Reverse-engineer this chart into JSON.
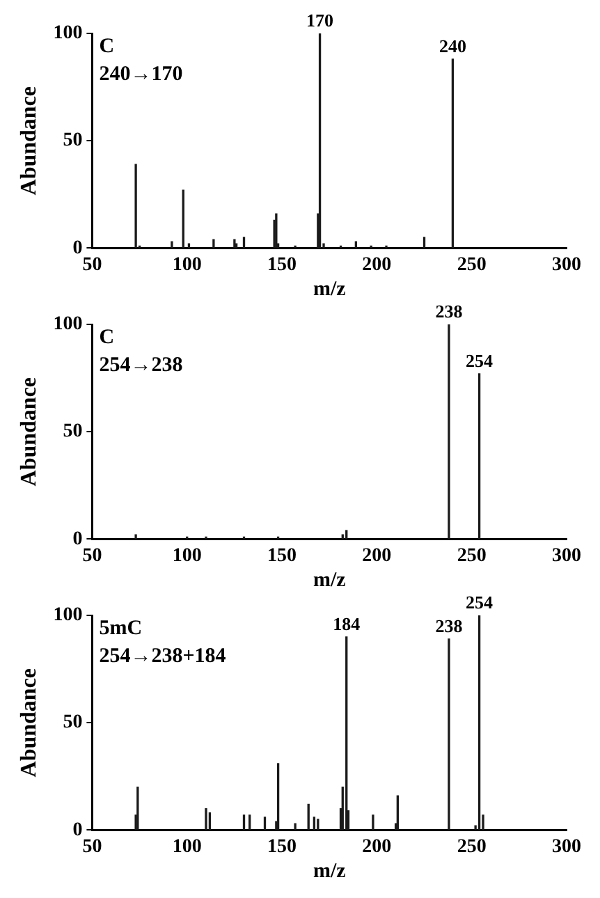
{
  "chart_data": [
    {
      "type": "bar",
      "xlabel": "m/z",
      "ylabel": "Abundance",
      "xlim": [
        50,
        300
      ],
      "xticks": [
        50,
        100,
        150,
        200,
        250,
        300
      ],
      "ylim": [
        0,
        100
      ],
      "yticks": [
        0,
        50,
        100
      ],
      "grid": false,
      "legend": false,
      "series": [
        {
          "color": "#1a1a1a",
          "x": [
            73,
            75,
            92,
            98,
            101,
            114,
            125,
            126,
            130,
            146,
            147,
            148,
            157,
            169,
            170,
            172,
            181,
            189,
            197,
            205,
            225,
            240
          ],
          "values": [
            39,
            1,
            3,
            27,
            2,
            4,
            4,
            2,
            5,
            13,
            16,
            2,
            1,
            16,
            100,
            2,
            1,
            3,
            1,
            1,
            5,
            88
          ]
        }
      ],
      "annotations": [
        "C",
        "240→170",
        {
          "text": "170",
          "x": 170,
          "y": 100
        },
        {
          "text": "240",
          "x": 240,
          "y": 88
        }
      ]
    },
    {
      "type": "bar",
      "xlabel": "m/z",
      "ylabel": "Abundance",
      "xlim": [
        50,
        300
      ],
      "xticks": [
        50,
        100,
        150,
        200,
        250,
        300
      ],
      "ylim": [
        0,
        100
      ],
      "yticks": [
        0,
        50,
        100
      ],
      "grid": false,
      "legend": false,
      "series": [
        {
          "color": "#1a1a1a",
          "x": [
            73,
            100,
            110,
            130,
            148,
            182,
            184,
            238,
            254
          ],
          "values": [
            2,
            1,
            1,
            1,
            1,
            2,
            4,
            100,
            77
          ]
        }
      ],
      "annotations": [
        "C",
        "254→238",
        {
          "text": "238",
          "x": 238,
          "y": 100
        },
        {
          "text": "254",
          "x": 254,
          "y": 77
        }
      ]
    },
    {
      "type": "bar",
      "xlabel": "m/z",
      "ylabel": "Abundance",
      "xlim": [
        50,
        300
      ],
      "xticks": [
        50,
        100,
        150,
        200,
        250,
        300
      ],
      "ylim": [
        0,
        100
      ],
      "yticks": [
        0,
        50,
        100
      ],
      "grid": false,
      "legend": false,
      "series": [
        {
          "color": "#1a1a1a",
          "x": [
            73,
            74,
            110,
            112,
            130,
            133,
            141,
            147,
            148,
            157,
            164,
            167,
            169,
            181,
            182,
            184,
            185,
            198,
            210,
            211,
            238,
            252,
            254,
            256
          ],
          "values": [
            7,
            20,
            10,
            8,
            7,
            7,
            6,
            4,
            31,
            3,
            12,
            6,
            5,
            10,
            20,
            90,
            9,
            7,
            3,
            16,
            89,
            2,
            100,
            7
          ]
        }
      ],
      "annotations": [
        "5mC",
        "254→238+184",
        {
          "text": "184",
          "x": 184,
          "y": 90
        },
        {
          "text": "238",
          "x": 238,
          "y": 89
        },
        {
          "text": "254",
          "x": 254,
          "y": 100
        }
      ]
    }
  ]
}
